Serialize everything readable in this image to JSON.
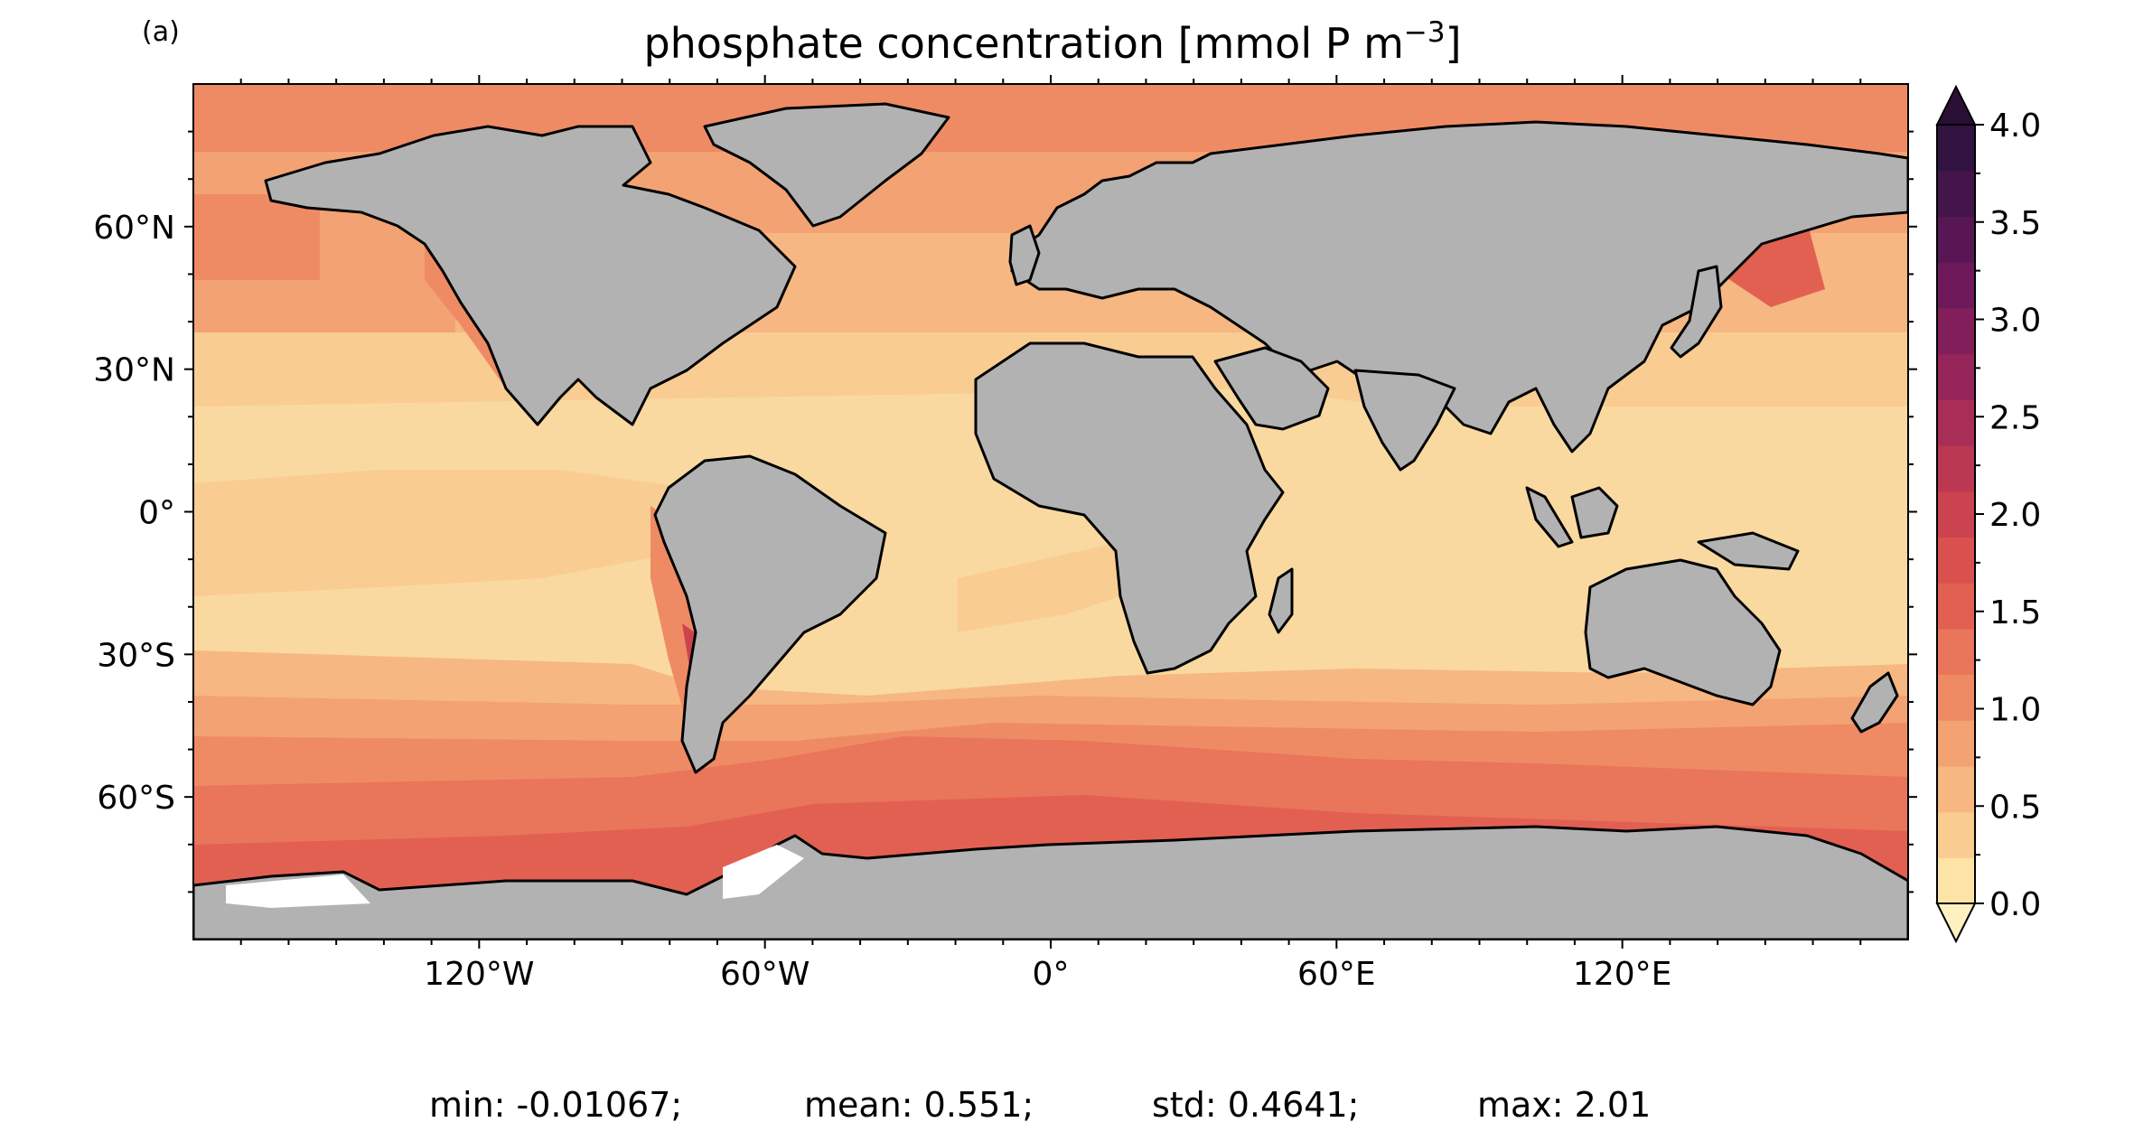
{
  "panel_label": "(a)",
  "title": "phosphate concentration [mmol P m",
  "title_exponent": "−3",
  "title_close": "]",
  "map": {
    "projection": "equirectangular",
    "lon_range": [
      -180,
      180
    ],
    "lat_range": [
      -90,
      90
    ],
    "ocean_base_color": "#f9d9a0",
    "land_color": "#b2b2b2",
    "coastline_color": "#000000",
    "lat_ticks": [
      {
        "value": 60,
        "label": "60°N"
      },
      {
        "value": 30,
        "label": "30°N"
      },
      {
        "value": 0,
        "label": "0°"
      },
      {
        "value": -30,
        "label": "30°S"
      },
      {
        "value": -60,
        "label": "60°S"
      }
    ],
    "lon_ticks": [
      {
        "value": -120,
        "label": "120°W"
      },
      {
        "value": -60,
        "label": "60°W"
      },
      {
        "value": 0,
        "label": "0°"
      },
      {
        "value": 60,
        "label": "60°E"
      },
      {
        "value": 120,
        "label": "120°E"
      }
    ]
  },
  "colorbar": {
    "min": 0.0,
    "max": 4.0,
    "extend": "both",
    "ticks": [
      "0.0",
      "0.5",
      "1.0",
      "1.5",
      "2.0",
      "2.5",
      "3.0",
      "3.5",
      "4.0"
    ],
    "tick_values": [
      0.0,
      0.5,
      1.0,
      1.5,
      2.0,
      2.5,
      3.0,
      3.5,
      4.0
    ],
    "colors": [
      "#fde3a5",
      "#f9cc92",
      "#f6b782",
      "#f3a273",
      "#ef8b64",
      "#e9755a",
      "#e26052",
      "#d9504f",
      "#cb434f",
      "#bb3853",
      "#a92e57",
      "#962659",
      "#821e5a",
      "#6d195a",
      "#581754",
      "#44154b",
      "#321240"
    ],
    "under_color": "#fff0c0",
    "over_color": "#2a1035"
  },
  "stats": {
    "min": "min: -0.01067;",
    "mean": "mean: 0.551;",
    "std": "std: 0.4641;",
    "max": "max: 2.01"
  }
}
